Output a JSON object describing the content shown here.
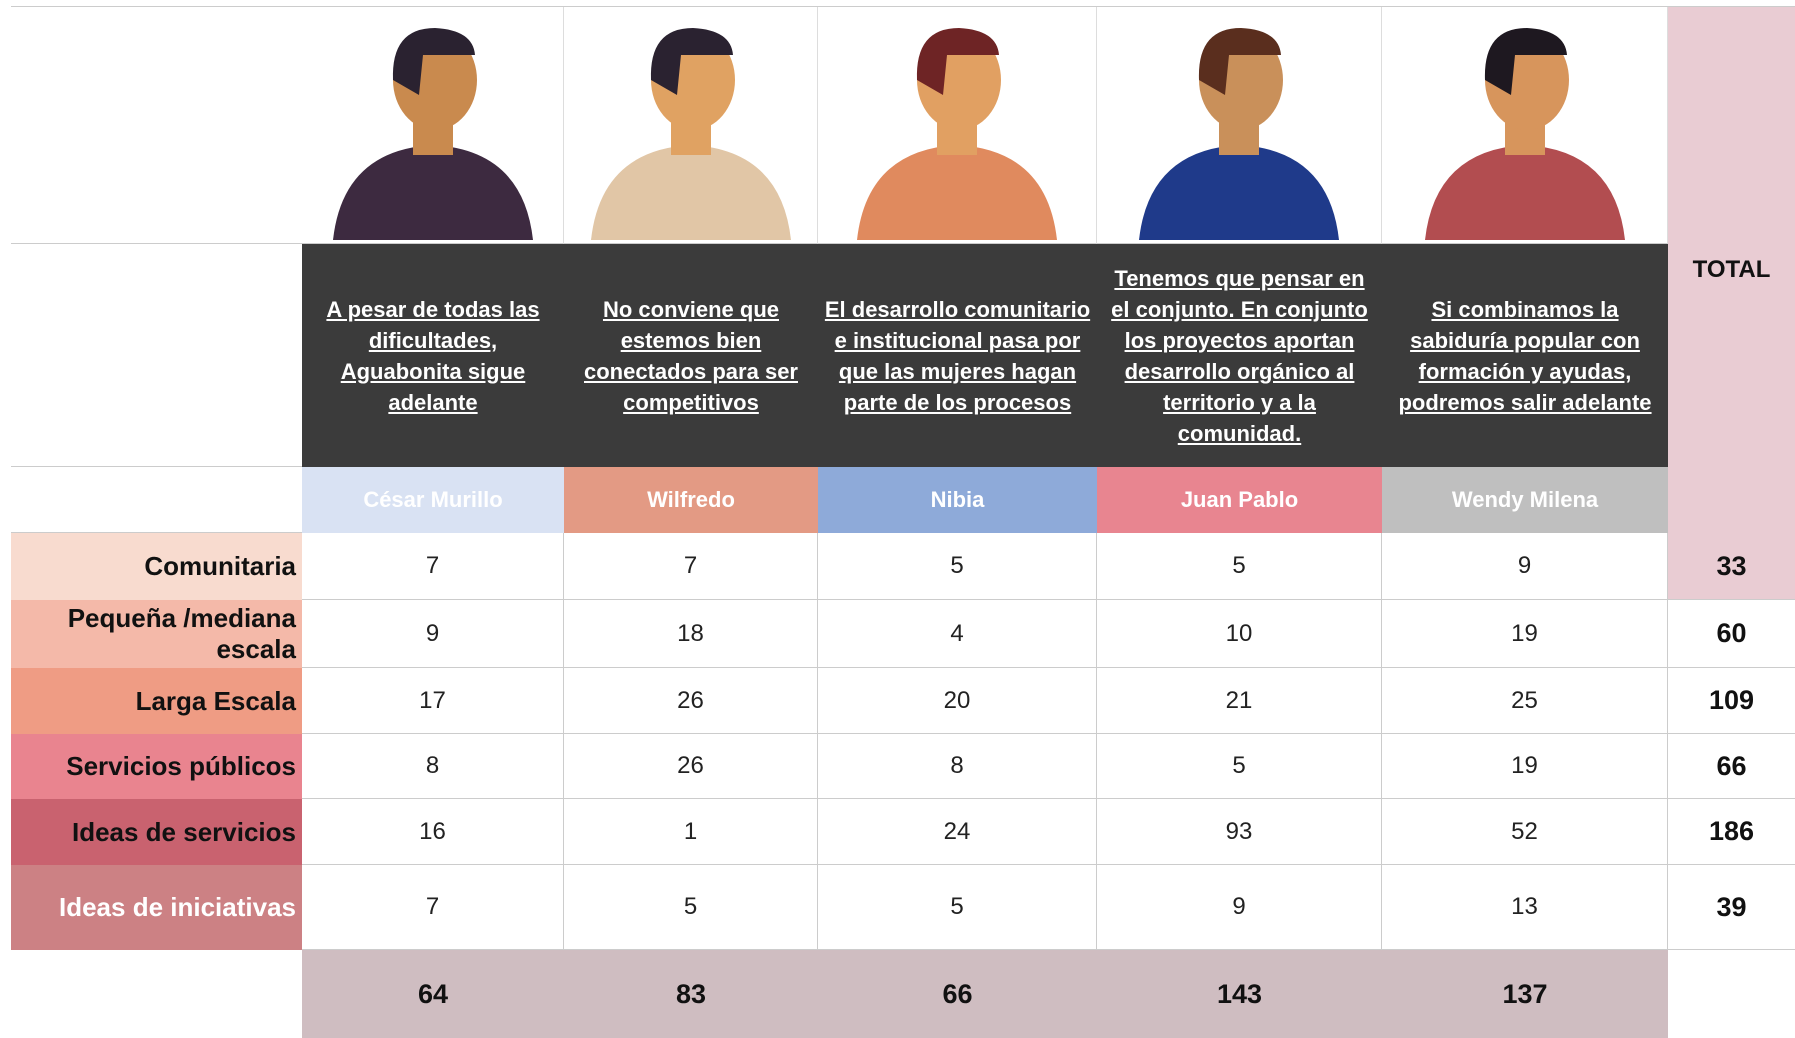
{
  "table": {
    "total_header": "TOTAL",
    "people": [
      {
        "quote": "A pesar de todas las dificultades, Aguabonita sigue adelante",
        "name": "César Murillo",
        "total": 64
      },
      {
        "quote": "No conviene que estemos bien conectados para ser competitivos",
        "name": "Wilfredo",
        "total": 83
      },
      {
        "quote": "El desarrollo comunitario e institucional pasa por que las mujeres hagan parte de los procesos",
        "name": "Nibia",
        "total": 66
      },
      {
        "quote": "Tenemos que pensar en el conjunto. En conjunto los proyectos aportan desarrollo orgánico al territorio y a la comunidad.",
        "name": "Juan Pablo",
        "total": 143
      },
      {
        "quote": "Si combinamos la sabiduría popular con formación y ayudas, podremos salir adelante",
        "name": "Wendy Milena",
        "total": 137
      }
    ],
    "rows": [
      {
        "label": "Comunitaria",
        "values": [
          7,
          7,
          5,
          5,
          9
        ],
        "total": 33
      },
      {
        "label": "Pequeña /mediana escala",
        "values": [
          9,
          18,
          4,
          10,
          19
        ],
        "total": 60
      },
      {
        "label": "Larga Escala",
        "values": [
          17,
          26,
          20,
          21,
          25
        ],
        "total": 109
      },
      {
        "label": "Servicios públicos",
        "values": [
          8,
          26,
          8,
          5,
          19
        ],
        "total": 66
      },
      {
        "label": "Ideas de servicios",
        "values": [
          16,
          1,
          24,
          93,
          52
        ],
        "total": 186
      },
      {
        "label": "Ideas de iniciativas",
        "values": [
          7,
          5,
          5,
          9,
          13
        ],
        "total": 39
      }
    ]
  }
}
